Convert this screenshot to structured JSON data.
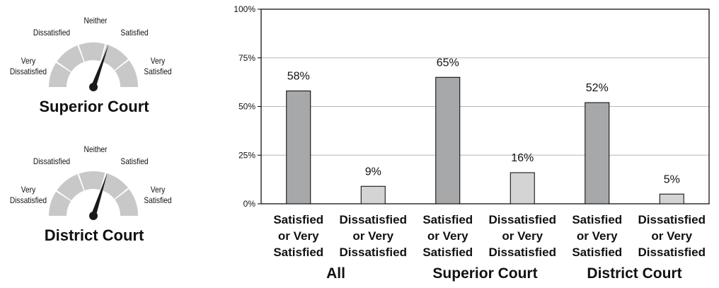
{
  "gauges": [
    {
      "title": "Superior Court",
      "labels": {
        "very_dissatisfied": [
          "Very",
          "Dissatisfied"
        ],
        "dissatisfied": "Dissatisfied",
        "neither": "Neither",
        "satisfied": "Satisfied",
        "very_satisfied": [
          "Very",
          "Satisfied"
        ]
      },
      "needle_level": 0.61,
      "colors": {
        "segment": "#c8c8c8",
        "needle": "#1a1a1a"
      }
    },
    {
      "title": "District Court",
      "labels": {
        "very_dissatisfied": [
          "Very",
          "Dissatisfied"
        ],
        "dissatisfied": "Dissatisfied",
        "neither": "Neither",
        "satisfied": "Satisfied",
        "very_satisfied": [
          "Very",
          "Satisfied"
        ]
      },
      "needle_level": 0.6,
      "colors": {
        "segment": "#c8c8c8",
        "needle": "#1a1a1a"
      }
    }
  ],
  "chart_data": {
    "type": "bar",
    "ylim": [
      0,
      100
    ],
    "yticks": [
      "0%",
      "25%",
      "50%",
      "75%",
      "100%"
    ],
    "ytick_values": [
      0,
      25,
      50,
      75,
      100
    ],
    "groups": [
      "All",
      "Superior Court",
      "District Court"
    ],
    "bars": [
      {
        "group": "All",
        "label": [
          "Satisfied",
          "or Very",
          "Satisfied"
        ],
        "value": 58,
        "value_label": "58%",
        "kind": "satisfied"
      },
      {
        "group": "All",
        "label": [
          "Dissatisfied",
          "or Very",
          "Dissatisfied"
        ],
        "value": 9,
        "value_label": "9%",
        "kind": "dissatisfied"
      },
      {
        "group": "Superior Court",
        "label": [
          "Satisfied",
          "or Very",
          "Satisfied"
        ],
        "value": 65,
        "value_label": "65%",
        "kind": "satisfied"
      },
      {
        "group": "Superior Court",
        "label": [
          "Dissatisfied",
          "or Very",
          "Dissatisfied"
        ],
        "value": 16,
        "value_label": "16%",
        "kind": "dissatisfied"
      },
      {
        "group": "District Court",
        "label": [
          "Satisfied",
          "or Very",
          "Satisfied"
        ],
        "value": 52,
        "value_label": "52%",
        "kind": "satisfied"
      },
      {
        "group": "District Court",
        "label": [
          "Dissatisfied",
          "or Very",
          "Dissatisfied"
        ],
        "value": 5,
        "value_label": "5%",
        "kind": "dissatisfied"
      }
    ],
    "grid": true,
    "colors": {
      "satisfied": "#a7a8aa",
      "dissatisfied": "#d4d4d4",
      "grid": "#b8b8b8",
      "frame": "#000000"
    }
  }
}
